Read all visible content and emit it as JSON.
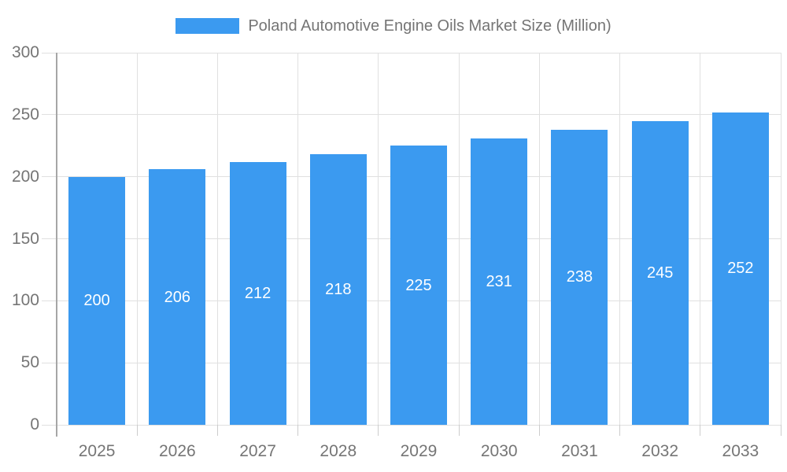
{
  "chart_data": {
    "type": "bar",
    "title": "Poland Automotive Engine Oils Market Size (Million)",
    "legend_position": "top-center",
    "categories": [
      "2025",
      "2026",
      "2027",
      "2028",
      "2029",
      "2030",
      "2031",
      "2032",
      "2033"
    ],
    "series": [
      {
        "name": "Poland Automotive Engine Oils Market Size (Million)",
        "values": [
          200,
          206,
          212,
          218,
          225,
          231,
          238,
          245,
          252
        ]
      }
    ],
    "value_labels_shown": true,
    "xlabel": "",
    "ylabel": "",
    "ylim": [
      0,
      300
    ],
    "yticks": [
      0,
      50,
      100,
      150,
      200,
      250,
      300
    ],
    "grid": "on",
    "colors": {
      "bar": "#3B9AF0",
      "axis_line": "#a6a6a6",
      "gridline": "#e0e0e0",
      "tick_mark": "#cccccc",
      "tick_label": "#757575",
      "legend_text": "#757575",
      "bar_value_label": "#ffffff",
      "background": "#ffffff"
    }
  }
}
